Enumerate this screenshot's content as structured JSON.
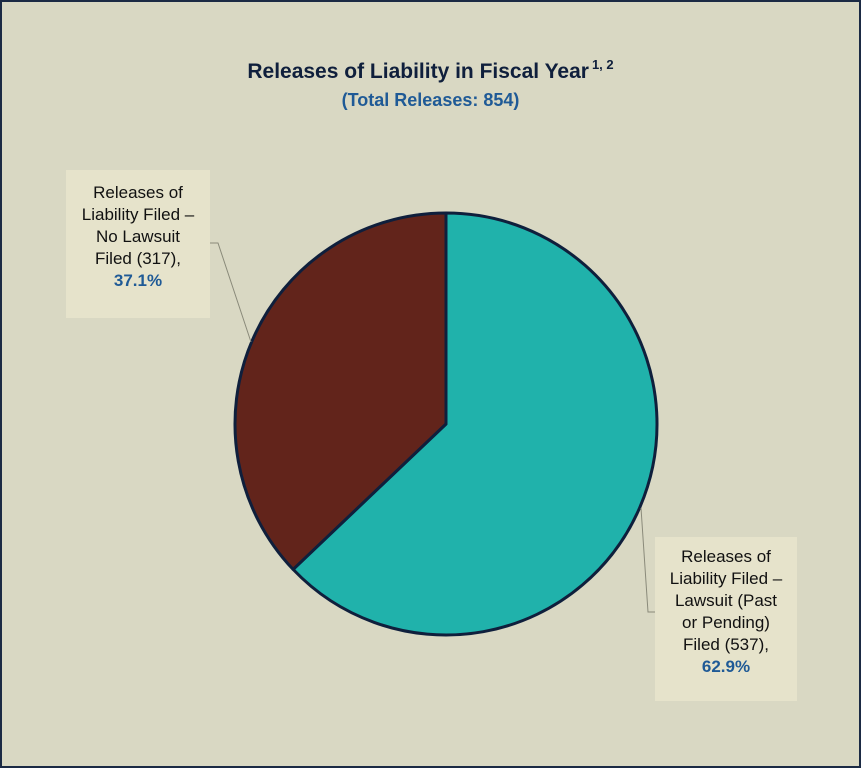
{
  "title": "Releases of Liability in Fiscal Year",
  "title_superscript": "1, 2",
  "subtitle": "(Total Releases: 854)",
  "chart_data": {
    "type": "pie",
    "title": "Releases of Liability in Fiscal Year",
    "subtitle": "(Total Releases: 854)",
    "total": 854,
    "slices": [
      {
        "label_lines": [
          "Releases of",
          "Liability Filed –",
          "Lawsuit (Past",
          "or Pending)",
          "Filed (537),"
        ],
        "count": 537,
        "percent_label": "62.9%",
        "value": 62.9,
        "color": "#20b2ab"
      },
      {
        "label_lines": [
          "Releases of",
          "Liability Filed –",
          "No Lawsuit",
          "Filed (317),"
        ],
        "count": 317,
        "percent_label": "37.1%",
        "value": 37.1,
        "color": "#62241b"
      }
    ],
    "start_angle": "12 o'clock",
    "direction": "clockwise",
    "colors": {
      "background": "#d9d8c3",
      "slice_border": "#0f1f3c",
      "percent_text": "#1f5a96",
      "leader_line": "#8a8a7a"
    }
  }
}
